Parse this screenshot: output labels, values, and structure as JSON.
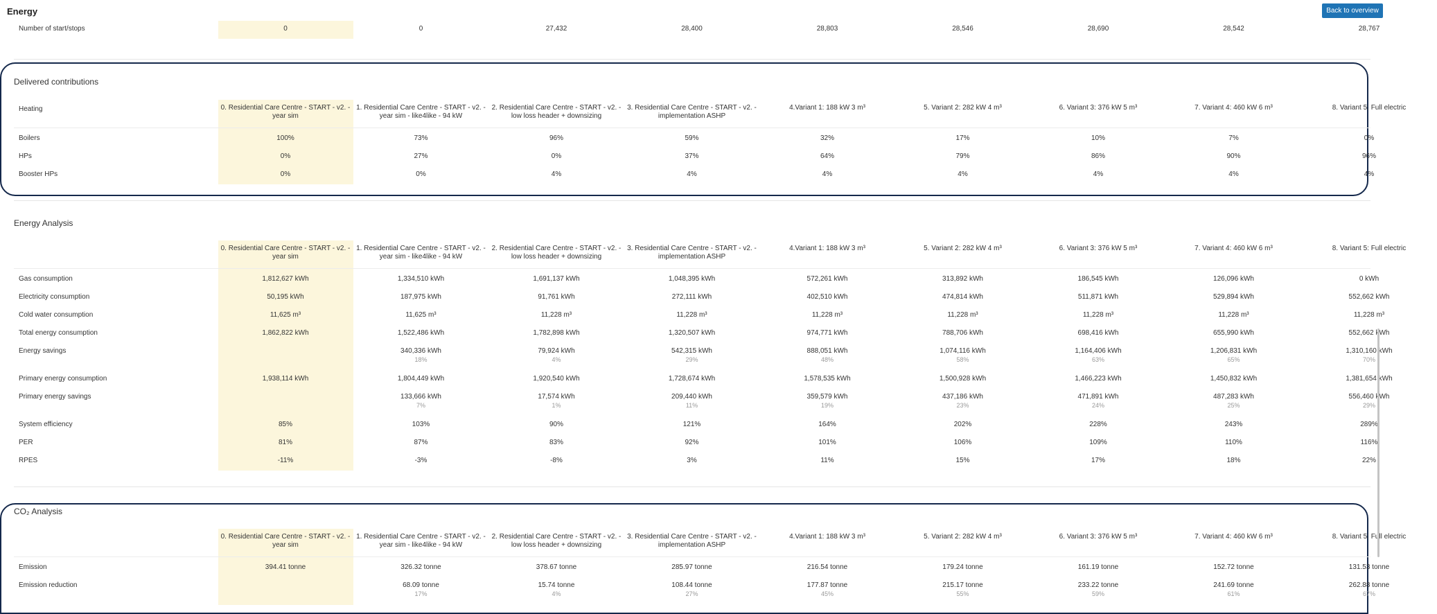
{
  "header": {
    "title": "Energy",
    "back_label": "Back to overview"
  },
  "variants": [
    "0. Residential Care Centre - START - v2. - year sim",
    "1. Residential Care Centre - START - v2. - year sim - like4like - 94 kW",
    "2. Residential Care Centre - START - v2. - low loss header + downsizing",
    "3. Residential Care Centre - START - v2. - implementation ASHP",
    "4.Variant 1: 188 kW 3 m³",
    "5. Variant 2: 282 kW 4 m³",
    "6. Variant 3: 376 kW 5 m³",
    "7. Variant 4: 460 kW 6 m³",
    "8. Variant 5: Full electric"
  ],
  "energy_top": {
    "rows": [
      {
        "label": "Number of start/stops",
        "values": [
          "0",
          "0",
          "27,432",
          "28,400",
          "28,803",
          "28,546",
          "28,690",
          "28,542",
          "28,767"
        ]
      }
    ]
  },
  "delivered": {
    "title": "Delivered contributions",
    "header_label": "Heating",
    "rows": [
      {
        "label": "Boilers",
        "values": [
          "100%",
          "73%",
          "96%",
          "59%",
          "32%",
          "17%",
          "10%",
          "7%",
          "0%"
        ]
      },
      {
        "label": "HPs",
        "values": [
          "0%",
          "27%",
          "0%",
          "37%",
          "64%",
          "79%",
          "86%",
          "90%",
          "96%"
        ]
      },
      {
        "label": "Booster HPs",
        "values": [
          "0%",
          "0%",
          "4%",
          "4%",
          "4%",
          "4%",
          "4%",
          "4%",
          "4%"
        ]
      }
    ]
  },
  "energy_analysis": {
    "title": "Energy Analysis",
    "rows": [
      {
        "label": "Gas consumption",
        "values": [
          "1,812,627 kWh",
          "1,334,510 kWh",
          "1,691,137 kWh",
          "1,048,395 kWh",
          "572,261 kWh",
          "313,892 kWh",
          "186,545 kWh",
          "126,096 kWh",
          "0 kWh"
        ]
      },
      {
        "label": "Electricity consumption",
        "values": [
          "50,195 kWh",
          "187,975 kWh",
          "91,761 kWh",
          "272,111 kWh",
          "402,510 kWh",
          "474,814 kWh",
          "511,871 kWh",
          "529,894 kWh",
          "552,662 kWh"
        ]
      },
      {
        "label": "Cold water consumption",
        "values": [
          "11,625 m³",
          "11,625 m³",
          "11,228 m³",
          "11,228 m³",
          "11,228 m³",
          "11,228 m³",
          "11,228 m³",
          "11,228 m³",
          "11,228 m³"
        ]
      },
      {
        "label": "Total energy consumption",
        "values": [
          "1,862,822 kWh",
          "1,522,486 kWh",
          "1,782,898 kWh",
          "1,320,507 kWh",
          "974,771 kWh",
          "788,706 kWh",
          "698,416 kWh",
          "655,990 kWh",
          "552,662 kWh"
        ]
      },
      {
        "label": "Energy savings",
        "values": [
          "",
          "340,336 kWh",
          "79,924 kWh",
          "542,315 kWh",
          "888,051 kWh",
          "1,074,116 kWh",
          "1,164,406 kWh",
          "1,206,831 kWh",
          "1,310,160 kWh"
        ],
        "subs": [
          "",
          "18%",
          "4%",
          "29%",
          "48%",
          "58%",
          "63%",
          "65%",
          "70%"
        ]
      },
      {
        "label": "Primary energy consumption",
        "values": [
          "1,938,114 kWh",
          "1,804,449 kWh",
          "1,920,540 kWh",
          "1,728,674 kWh",
          "1,578,535 kWh",
          "1,500,928 kWh",
          "1,466,223 kWh",
          "1,450,832 kWh",
          "1,381,654 kWh"
        ]
      },
      {
        "label": "Primary energy savings",
        "values": [
          "",
          "133,666 kWh",
          "17,574 kWh",
          "209,440 kWh",
          "359,579 kWh",
          "437,186 kWh",
          "471,891 kWh",
          "487,283 kWh",
          "556,460 kWh"
        ],
        "subs": [
          "",
          "7%",
          "1%",
          "11%",
          "19%",
          "23%",
          "24%",
          "25%",
          "29%"
        ]
      },
      {
        "label": "System efficiency",
        "values": [
          "85%",
          "103%",
          "90%",
          "121%",
          "164%",
          "202%",
          "228%",
          "243%",
          "289%"
        ]
      },
      {
        "label": "PER",
        "values": [
          "81%",
          "87%",
          "83%",
          "92%",
          "101%",
          "106%",
          "109%",
          "110%",
          "116%"
        ]
      },
      {
        "label": "RPES",
        "values": [
          "-11%",
          "-3%",
          "-8%",
          "3%",
          "11%",
          "15%",
          "17%",
          "18%",
          "22%"
        ]
      }
    ]
  },
  "co2": {
    "title": "CO₂ Analysis",
    "rows": [
      {
        "label": "Emission",
        "values": [
          "394.41 tonne",
          "326.32 tonne",
          "378.67 tonne",
          "285.97 tonne",
          "216.54 tonne",
          "179.24 tonne",
          "161.19 tonne",
          "152.72 tonne",
          "131.53 tonne"
        ]
      },
      {
        "label": "Emission reduction",
        "values": [
          "",
          "68.09 tonne",
          "15.74 tonne",
          "108.44 tonne",
          "177.87 tonne",
          "215.17 tonne",
          "233.22 tonne",
          "241.69 tonne",
          "262.88 tonne"
        ],
        "subs": [
          "",
          "17%",
          "4%",
          "27%",
          "45%",
          "55%",
          "59%",
          "61%",
          "67%"
        ]
      }
    ]
  }
}
